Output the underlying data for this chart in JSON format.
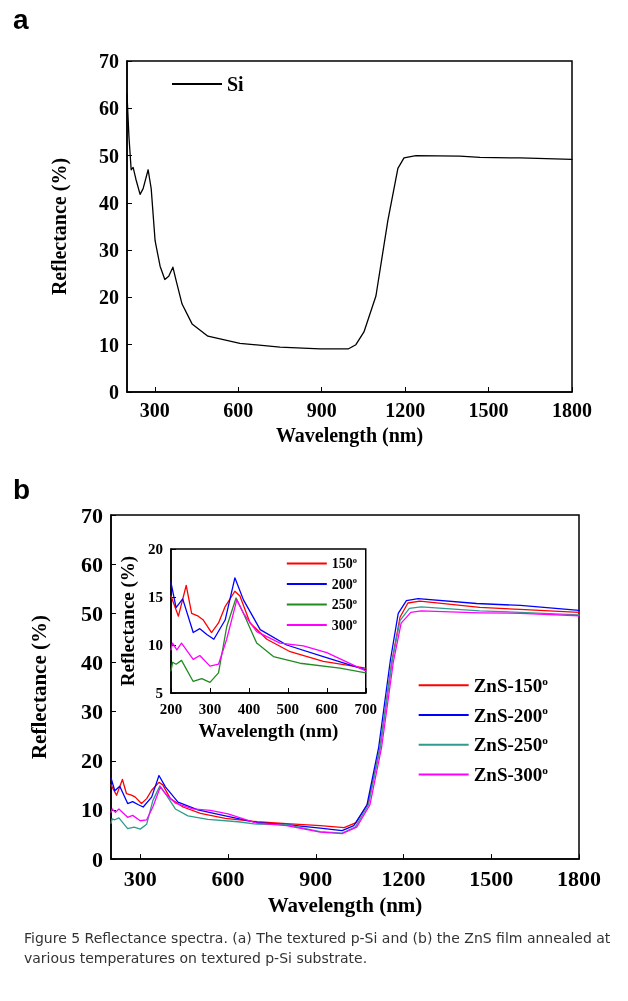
{
  "chart_data": [
    {
      "type": "line",
      "title": "a",
      "xlabel": "Wavelength (nm)",
      "ylabel": "Reflectance (%)",
      "xlim": [
        200,
        1800
      ],
      "xticks": [
        300,
        600,
        900,
        1200,
        1500,
        1800
      ],
      "ylim": [
        0,
        70
      ],
      "yticks": [
        0,
        10,
        20,
        30,
        40,
        50,
        60,
        70
      ],
      "grid": false,
      "legend": "top left",
      "marker": "none",
      "line_style": "solid",
      "series": [
        {
          "name": "Si",
          "color": "#000000",
          "x": [
            200,
            207,
            215,
            222,
            232,
            247,
            258,
            276,
            287,
            301,
            319,
            336,
            350,
            365,
            376,
            398,
            434,
            491,
            606,
            750,
            894,
            995,
            1023,
            1052,
            1095,
            1138,
            1174,
            1196,
            1239,
            1397,
            1469,
            1613,
            1800
          ],
          "values": [
            63,
            54,
            47,
            47.5,
            45,
            41.8,
            43,
            47,
            43,
            32,
            26.6,
            23.8,
            24.5,
            26.4,
            23.7,
            18.6,
            14.4,
            11.8,
            10.3,
            9.5,
            9.1,
            9.1,
            10,
            12.7,
            20.3,
            36.3,
            47.3,
            49.5,
            50,
            49.9,
            49.6,
            49.5,
            49.2
          ]
        }
      ]
    },
    {
      "type": "line",
      "title": "b",
      "xlabel": "Wavelength (nm)",
      "ylabel": "Reflectance (%)",
      "xlim": [
        200,
        1800
      ],
      "xticks": [
        300,
        600,
        900,
        1200,
        1500,
        1800
      ],
      "ylim": [
        0,
        70
      ],
      "yticks": [
        0,
        10,
        20,
        30,
        40,
        50,
        60,
        70
      ],
      "grid": false,
      "legend": "right",
      "marker": "none",
      "line_style": "solid",
      "annotations": [
        "Figure 5 Reflectance spectra. (a) The textured p-Si and (b) the ZnS film annealed at various temperatures on textured p-Si substrate."
      ],
      "series": [
        {
          "name": "ZnS-150$^{o}$",
          "color": "#ff0000",
          "x": [
            200,
            219,
            239,
            253,
            270,
            283,
            304,
            322,
            339,
            364,
            377,
            403,
            446,
            506,
            591,
            700,
            800,
            915,
            997,
            1038,
            1079,
            1120,
            1161,
            1188,
            1215,
            1256,
            1461,
            1598,
            1800
          ],
          "values": [
            15.1,
            13,
            16.2,
            13.3,
            13,
            12.6,
            11.3,
            12.3,
            14,
            15.6,
            15.1,
            12.3,
            10.6,
            9.3,
            8.3,
            7.6,
            7.2,
            6.8,
            6.4,
            7.4,
            11.4,
            22.7,
            40.4,
            49.2,
            52.1,
            52.5,
            51.2,
            50.8,
            50.2
          ]
        },
        {
          "name": "ZnS-200$^{o}$",
          "color": "#0000ff",
          "x": [
            200,
            213,
            230,
            257,
            274,
            292,
            310,
            339,
            364,
            386,
            429,
            497,
            591,
            700,
            800,
            915,
            990,
            1030,
            1075,
            1115,
            1155,
            1182,
            1210,
            1250,
            1450,
            1600,
            1800
          ],
          "values": [
            16.5,
            13.9,
            14.8,
            11.3,
            11.7,
            11.1,
            10.6,
            12.6,
            17,
            14.7,
            11.6,
            10,
            8.8,
            7.4,
            7,
            6.3,
            5.8,
            6.8,
            11,
            22.7,
            40.4,
            50,
            52.6,
            53,
            52,
            51.6,
            50.6
          ]
        },
        {
          "name": "ZnS-250$^{o}$",
          "color": "#2e9c8c",
          "x": [
            200,
            204,
            213,
            227,
            257,
            279,
            300,
            322,
            343,
            367,
            386,
            420,
            463,
            531,
            634,
            700,
            800,
            915,
            990,
            1035,
            1080,
            1120,
            1160,
            1188,
            1220,
            1260,
            1460,
            1600,
            1800
          ],
          "values": [
            7.3,
            8.2,
            8,
            8.4,
            6.2,
            6.5,
            6.1,
            7.1,
            11.9,
            14.9,
            13.3,
            10.2,
            8.8,
            8.1,
            7.6,
            7.1,
            7,
            5.6,
            5.3,
            6.5,
            11,
            22.7,
            40,
            48.5,
            51,
            51.3,
            50.5,
            50.2,
            49.7
          ]
        },
        {
          "name": "ZnS-300$^{o}$",
          "color": "#ff00ff",
          "x": [
            200,
            204,
            215,
            227,
            257,
            274,
            300,
            322,
            343,
            369,
            386,
            420,
            480,
            540,
            600,
            700,
            800,
            915,
            990,
            1040,
            1085,
            1125,
            1165,
            1192,
            1225,
            1260,
            1460,
            1600,
            1800
          ],
          "values": [
            9.5,
            10.2,
            9.5,
            10.2,
            8.5,
            8.9,
            7.8,
            8,
            10.6,
            14.7,
            13.3,
            11.4,
            10.2,
            9.9,
            9.2,
            7.3,
            6.8,
            5.5,
            5.2,
            6.5,
            11,
            22.7,
            40,
            48,
            50.2,
            50.5,
            50.1,
            50,
            49.5
          ]
        }
      ]
    },
    {
      "type": "line",
      "xlabel": "Wavelength (nm)",
      "ylabel": "Reflectance (%)",
      "xlim": [
        200,
        700
      ],
      "xticks": [
        200,
        300,
        400,
        500,
        600,
        700
      ],
      "ylim": [
        5,
        20
      ],
      "yticks": [
        5,
        10,
        15,
        20
      ],
      "grid": false,
      "legend": "top right",
      "marker": "none",
      "line_style": "solid",
      "series": [
        {
          "name": "150$^{o}$",
          "color": "#ff0000",
          "x": [
            200,
            219,
            239,
            253,
            270,
            283,
            304,
            322,
            339,
            364,
            377,
            403,
            446,
            506,
            591,
            700
          ],
          "values": [
            15.1,
            13,
            16.2,
            13.3,
            13,
            12.6,
            11.3,
            12.3,
            14,
            15.6,
            15.1,
            12.3,
            10.6,
            9.3,
            8.3,
            7.6
          ]
        },
        {
          "name": "200$^{o}$",
          "color": "#0000ff",
          "x": [
            200,
            213,
            230,
            257,
            274,
            292,
            310,
            339,
            364,
            386,
            429,
            497,
            591,
            700
          ],
          "values": [
            16.5,
            13.9,
            14.8,
            11.3,
            11.7,
            11.1,
            10.6,
            12.6,
            17,
            14.7,
            11.6,
            10,
            8.8,
            7.4
          ]
        },
        {
          "name": "250$^{o}$",
          "color": "#228b22",
          "x": [
            200,
            204,
            213,
            227,
            257,
            279,
            300,
            322,
            343,
            367,
            386,
            420,
            463,
            531,
            634,
            700
          ],
          "values": [
            7.3,
            8.2,
            8,
            8.4,
            6.2,
            6.5,
            6.1,
            7.1,
            11.9,
            14.9,
            13.3,
            10.2,
            8.8,
            8.1,
            7.6,
            7.1
          ]
        },
        {
          "name": "300$^{o}$",
          "color": "#ff00ff",
          "x": [
            200,
            204,
            215,
            227,
            257,
            274,
            300,
            322,
            343,
            369,
            386,
            420,
            480,
            540,
            600,
            700
          ],
          "values": [
            9.5,
            10.2,
            9.5,
            10.2,
            8.5,
            8.9,
            7.8,
            8,
            10.6,
            14.7,
            13.3,
            11.4,
            10.2,
            9.9,
            9.2,
            7.3
          ]
        }
      ]
    }
  ]
}
